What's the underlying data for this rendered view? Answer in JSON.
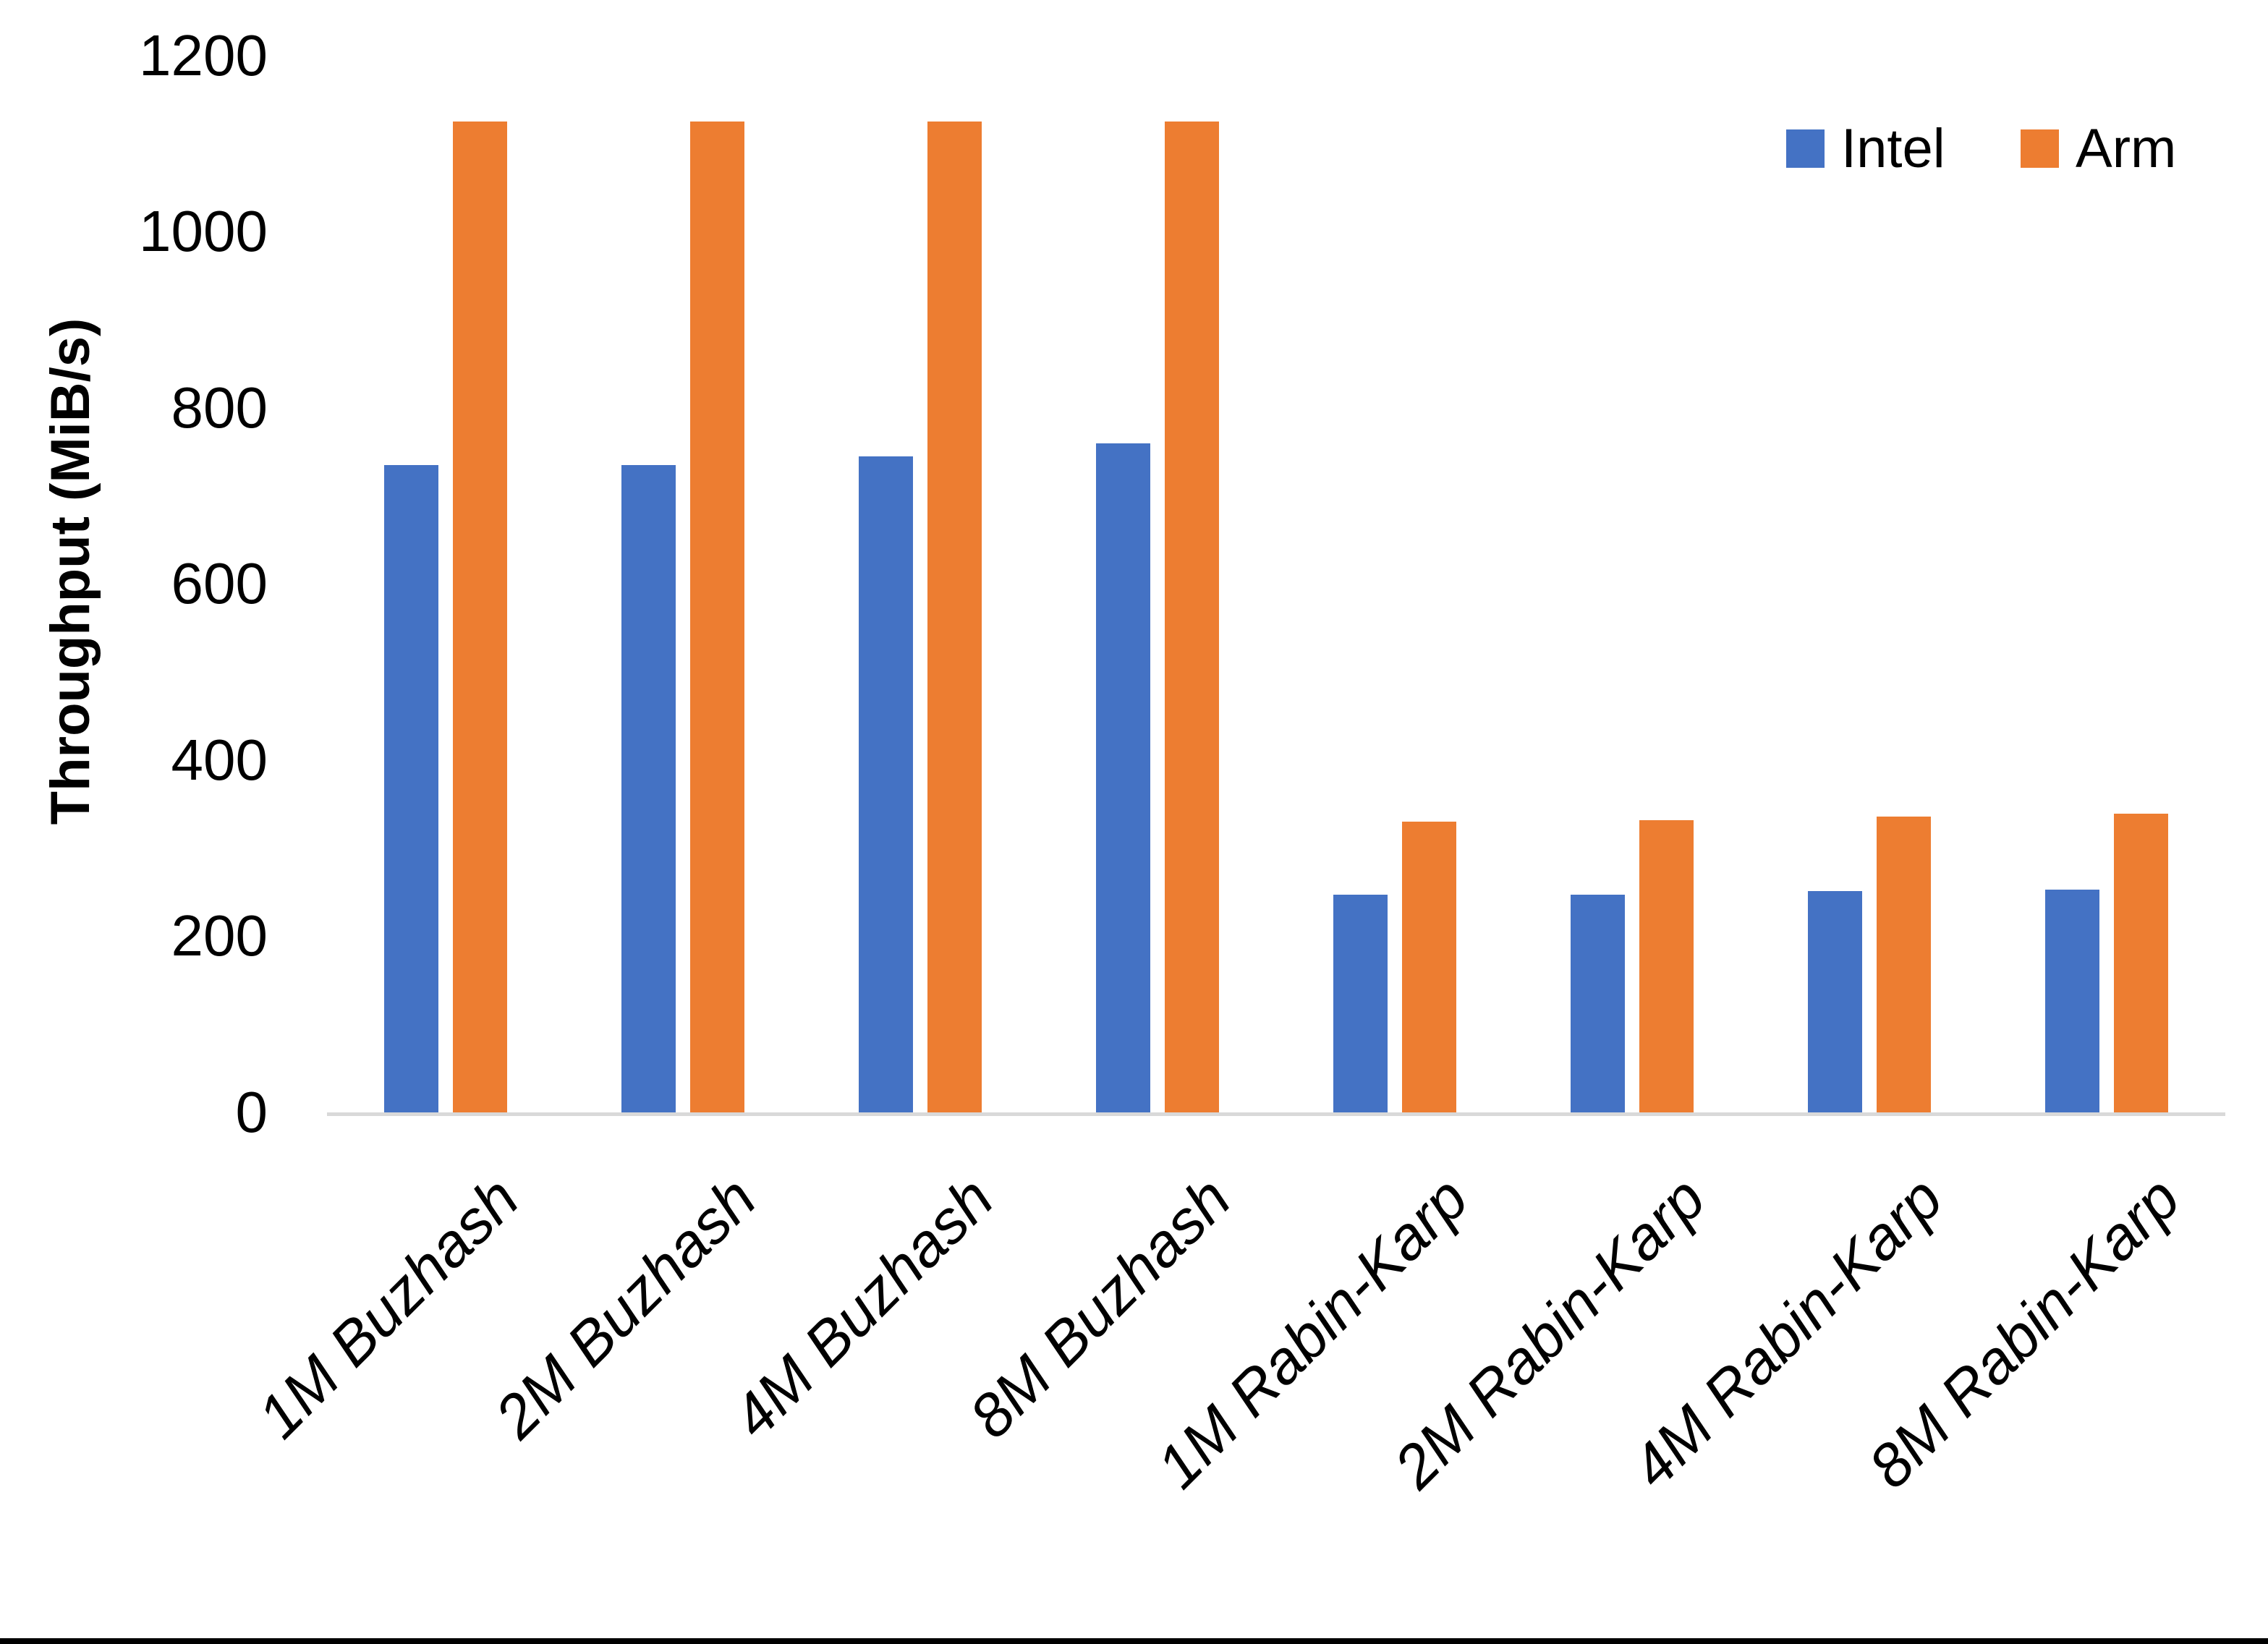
{
  "chart_data": {
    "type": "bar",
    "title": "",
    "ylabel": "Throughput (MiB/s)",
    "xlabel": "",
    "ylim": [
      0,
      1200
    ],
    "yticks": [
      "0",
      "200",
      "400",
      "600",
      "800",
      "1000",
      "1200"
    ],
    "ytick_values": [
      0,
      200,
      400,
      600,
      800,
      1000,
      1200
    ],
    "grid": false,
    "legend_position": "top-right",
    "categories": [
      "1M Buzhash",
      "2M Buzhash",
      "4M Buzhash",
      "8M Buzhash",
      "1M Rabin-Karp",
      "2M Rabin-Karp",
      "4M Rabin-Karp",
      "8M Rabin-Karp"
    ],
    "series": [
      {
        "name": "Intel",
        "color": "#4472C4",
        "values": [
          735,
          735,
          745,
          760,
          247,
          247,
          251,
          253
        ]
      },
      {
        "name": "Arm",
        "color": "#ED7D31",
        "values": [
          1125,
          1125,
          1125,
          1125,
          330,
          332,
          336,
          339
        ]
      }
    ]
  },
  "colors": {
    "intel": "#4472C4",
    "arm": "#ED7D31",
    "axis_line": "#D9D9D9",
    "text": "#000000",
    "background": "#FFFFFF",
    "bottom_border": "#000000"
  }
}
